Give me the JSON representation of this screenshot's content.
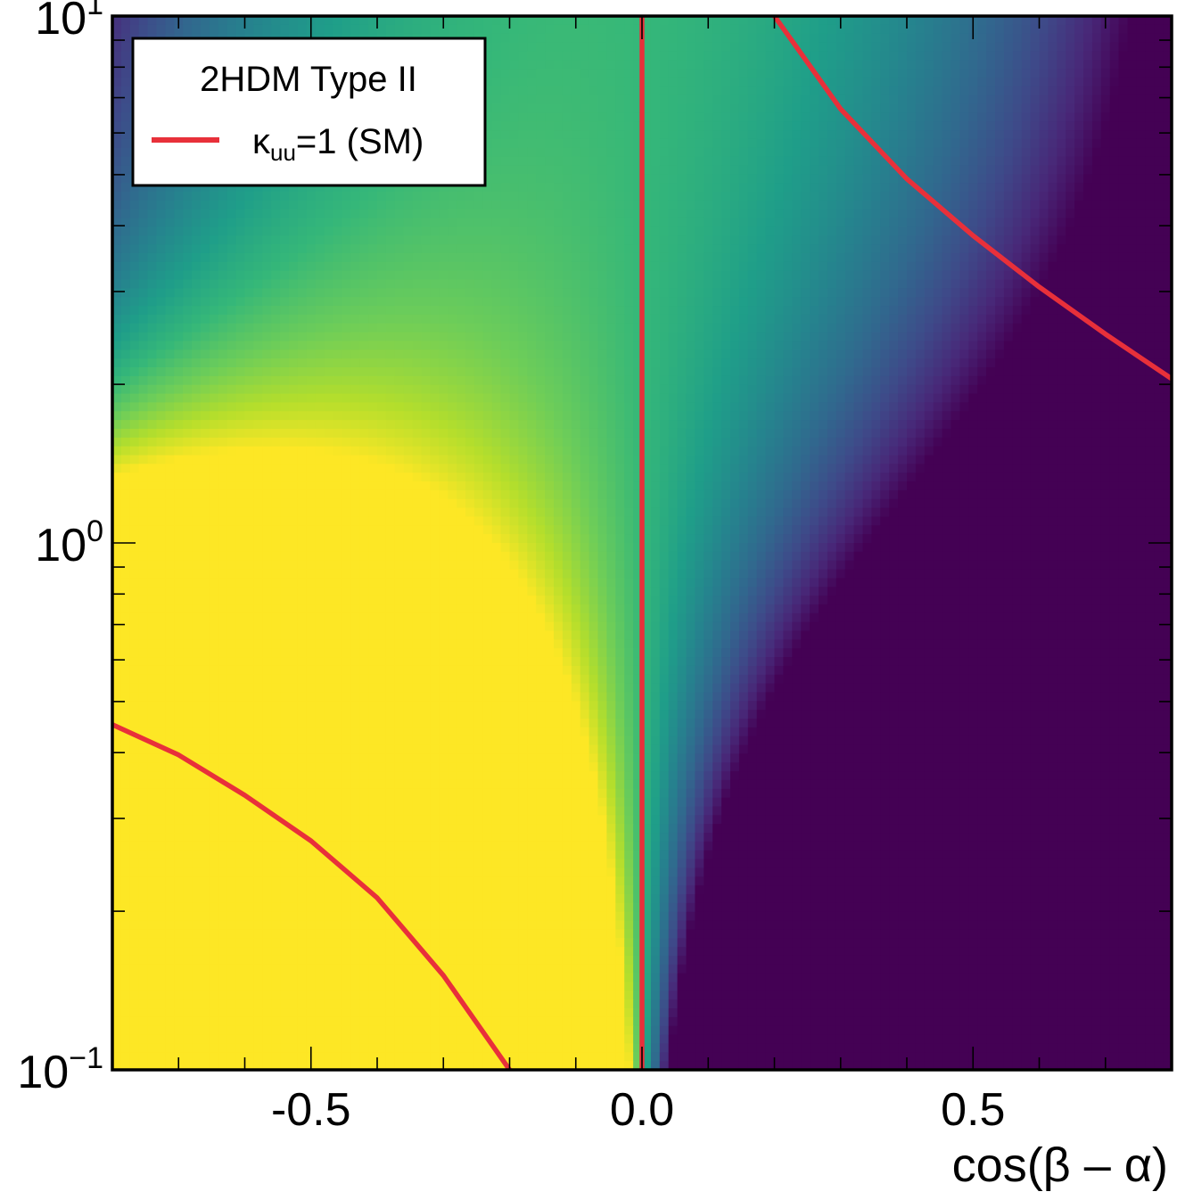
{
  "chart_data": {
    "type": "heatmap",
    "title": "",
    "xlabel": "cos(β – α)",
    "ylabel": "",
    "xlim": [
      -0.8,
      0.8
    ],
    "ylim": [
      0.1,
      10
    ],
    "y_scale": "log",
    "grid": false,
    "colormap": "viridis",
    "x_ticks": [
      {
        "value": -0.5,
        "label": "-0.5"
      },
      {
        "value": 0.0,
        "label": "0.0"
      },
      {
        "value": 0.5,
        "label": "0.5"
      }
    ],
    "y_ticks": [
      {
        "value": 0.1,
        "base": "10",
        "exp": "−1"
      },
      {
        "value": 1,
        "base": "10",
        "exp": "0"
      },
      {
        "value": 10,
        "base": "10",
        "exp": "1"
      }
    ],
    "legend": {
      "placement": "top-left",
      "title": "2HDM Type II",
      "entries": [
        {
          "label_main": "κ",
          "label_sub": "uu",
          "label_rest": "=1 (SM)",
          "color": "#e8303a"
        }
      ]
    },
    "series": [
      {
        "color": "#e8303a",
        "segments": [
          [
            [
              0.0,
              0.1
            ],
            [
              0.0,
              10
            ]
          ],
          [
            [
              -0.8,
              0.452
            ],
            [
              -0.7,
              0.396
            ],
            [
              -0.6,
              0.332
            ],
            [
              -0.5,
              0.272
            ],
            [
              -0.4,
              0.212
            ],
            [
              -0.3,
              0.151
            ],
            [
              -0.2,
              0.1
            ]
          ],
          [
            [
              0.2,
              10
            ],
            [
              0.3,
              6.66
            ],
            [
              0.4,
              4.91
            ],
            [
              0.5,
              3.83
            ],
            [
              0.6,
              3.06
            ],
            [
              0.7,
              2.49
            ],
            [
              0.8,
              2.05
            ]
          ]
        ]
      }
    ]
  }
}
